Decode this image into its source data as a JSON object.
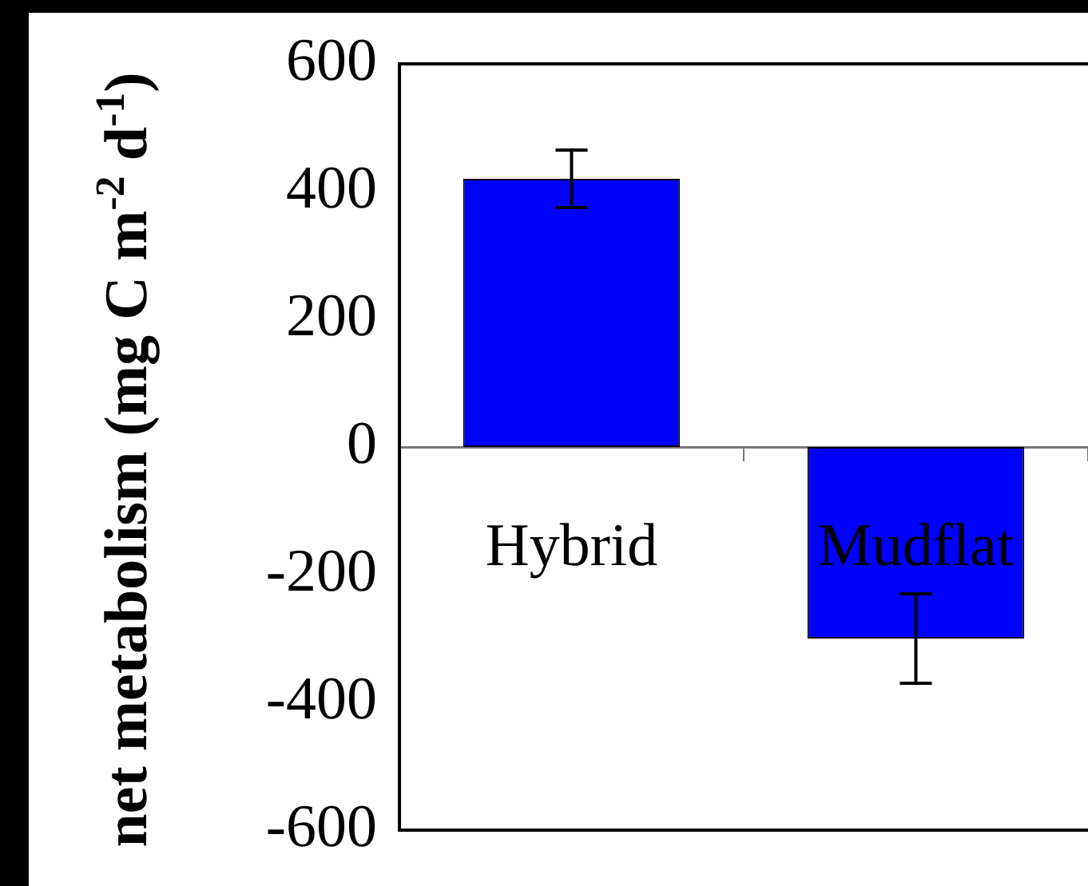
{
  "chart_data": {
    "type": "bar",
    "ylabel": "net metabolism (mg C m$^{-2}$ d$^{-1}$)",
    "categories": [
      "Hybrid",
      "Mudflat"
    ],
    "values": [
      420,
      -300
    ],
    "errors": [
      45,
      70
    ],
    "color": "#0000ff",
    "ylim": [
      -600,
      600
    ],
    "yticks": [
      -600,
      -400,
      -200,
      0,
      200,
      400,
      600
    ],
    "grid": false,
    "legend": false
  }
}
